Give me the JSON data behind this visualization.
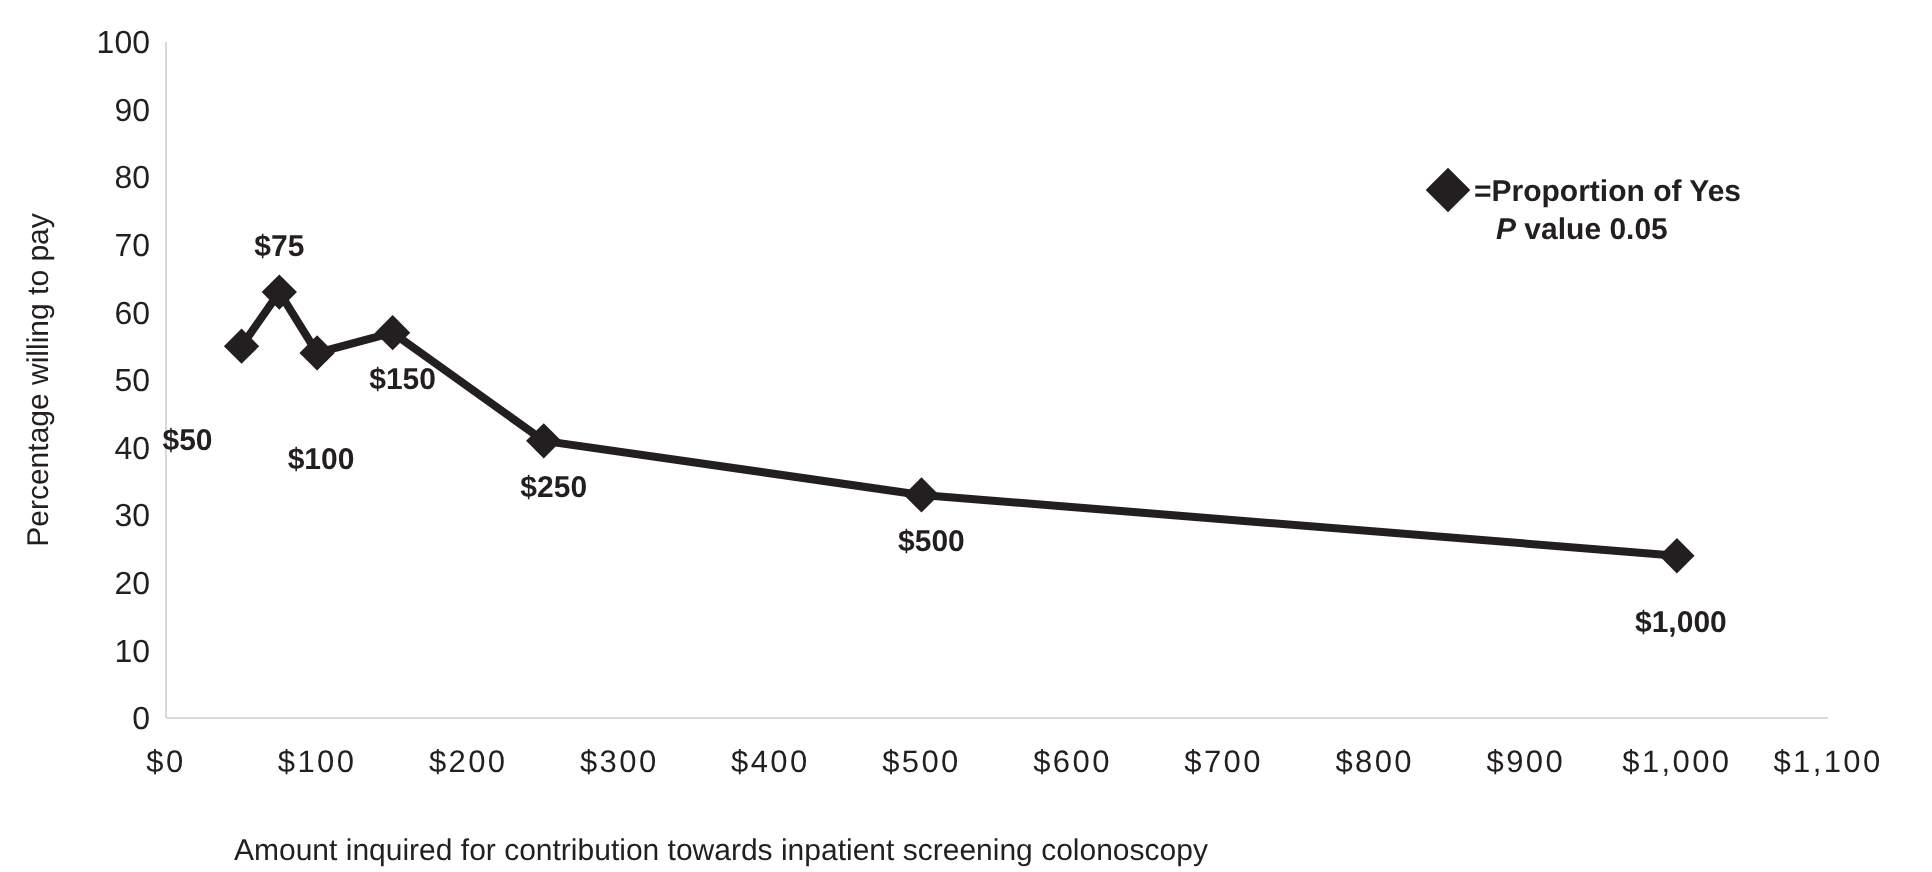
{
  "chart_data": {
    "type": "line",
    "xlabel": "Amount inquired for contribution towards inpatient screening colonoscopy",
    "ylabel": "Percentage willing to pay",
    "x": [
      50,
      75,
      100,
      150,
      250,
      500,
      1000
    ],
    "series": [
      {
        "name": "=Proportion of Yes",
        "color": "#231f20",
        "values": [
          55,
          63,
          54,
          57,
          41,
          33,
          24
        ]
      }
    ],
    "marker": "diamond",
    "legend": "top right",
    "annotations": [
      {
        "text": "$50",
        "x": 50,
        "y": 55
      },
      {
        "text": "$75",
        "x": 75,
        "y": 63
      },
      {
        "text": "$100",
        "x": 100,
        "y": 54
      },
      {
        "text": "$150",
        "x": 150,
        "y": 57
      },
      {
        "text": "$250",
        "x": 250,
        "y": 41
      },
      {
        "text": "$500",
        "x": 500,
        "y": 33
      },
      {
        "text": "$1,000",
        "x": 1000,
        "y": 24
      },
      "P value 0.05"
    ],
    "xlim": [
      0,
      1100
    ],
    "xticks": [
      {
        "value": 0,
        "label": "$0"
      },
      {
        "value": 100,
        "label": "$100"
      },
      {
        "value": 200,
        "label": "$200"
      },
      {
        "value": 300,
        "label": "$300"
      },
      {
        "value": 400,
        "label": "$400"
      },
      {
        "value": 500,
        "label": "$500"
      },
      {
        "value": 600,
        "label": "$600"
      },
      {
        "value": 700,
        "label": "$700"
      },
      {
        "value": 800,
        "label": "$800"
      },
      {
        "value": 900,
        "label": "$900"
      },
      {
        "value": 1000,
        "label": "$1,000"
      },
      {
        "value": 1100,
        "label": "$1,100"
      }
    ],
    "ylim": [
      0,
      100
    ],
    "yticks": [
      0,
      10,
      20,
      30,
      40,
      50,
      60,
      70,
      80,
      90,
      100
    ]
  }
}
